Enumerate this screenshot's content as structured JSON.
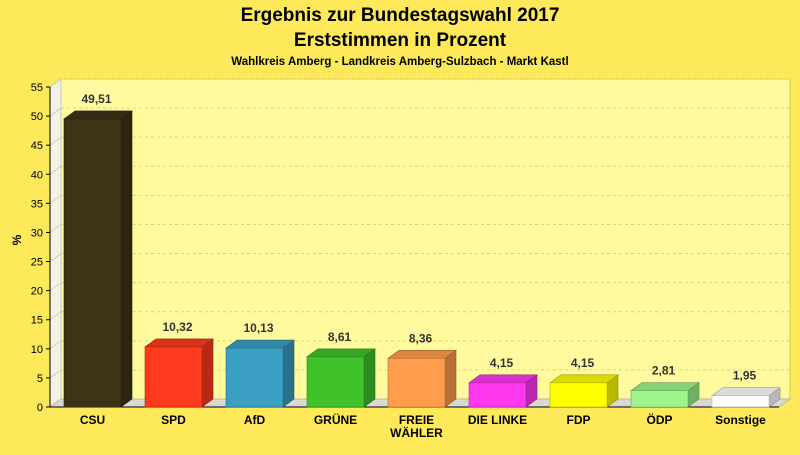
{
  "chart_data": {
    "type": "bar",
    "title": "Ergebnis zur Bundestagswahl 2017",
    "subtitle": "Erststimmen in Prozent",
    "subsubtitle": "Wahlkreis Amberg - Landkreis Amberg-Sulzbach - Markt Kastl",
    "ylabel": "%",
    "xlabel": "",
    "ylim": [
      0,
      55
    ],
    "yticks": [
      0,
      5,
      10,
      15,
      20,
      25,
      30,
      35,
      40,
      45,
      50,
      55
    ],
    "grid": true,
    "categories": [
      "CSU",
      "SPD",
      "AfD",
      "GRÜNE",
      "FREIE WÄHLER",
      "DIE LINKE",
      "FDP",
      "ÖDP",
      "Sonstige"
    ],
    "category_label_lines": [
      [
        "CSU"
      ],
      [
        "SPD"
      ],
      [
        "AfD"
      ],
      [
        "GRÜNE"
      ],
      [
        "FREIE",
        "WÄHLER"
      ],
      [
        "DIE LINKE"
      ],
      [
        "FDP"
      ],
      [
        "ÖDP"
      ],
      [
        "Sonstige"
      ]
    ],
    "values": [
      49.51,
      10.32,
      10.13,
      8.61,
      8.36,
      4.15,
      4.15,
      2.81,
      1.95
    ],
    "value_labels": [
      "49,51",
      "10,32",
      "10,13",
      "8,61",
      "8,36",
      "4,15",
      "4,15",
      "2,81",
      "1,95"
    ],
    "colors": [
      "#3d3416",
      "#ff3a1e",
      "#3a9fc2",
      "#3fc22a",
      "#ff9d4d",
      "#ff38f0",
      "#ffff00",
      "#9bf58a",
      "#ffffff"
    ]
  }
}
